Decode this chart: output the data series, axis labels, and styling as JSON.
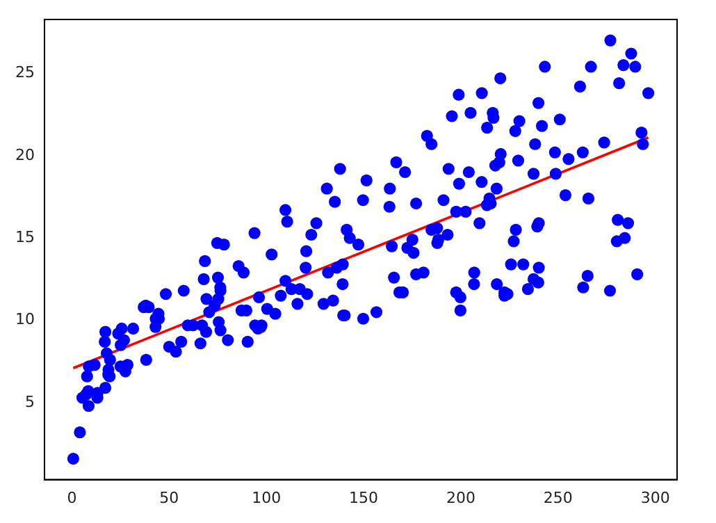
{
  "chart_data": {
    "type": "scatter",
    "marker": "circle",
    "legend": false,
    "grid": false,
    "xlim": [
      -14.1,
      311.2
    ],
    "ylim": [
      0.33,
      28.27
    ],
    "xticks": [
      0,
      50,
      100,
      150,
      200,
      250,
      300
    ],
    "yticks": [
      5,
      10,
      15,
      20,
      25
    ],
    "series": [
      {
        "color": "#0000ff",
        "x": [
          230.1,
          44.5,
          17.2,
          151.5,
          180.8,
          8.7,
          57.5,
          120.2,
          8.6,
          199.8,
          66.1,
          214.7,
          23.8,
          97.5,
          204.1,
          195.4,
          67.8,
          281.4,
          69.2,
          147.3,
          218.4,
          237.4,
          13.2,
          228.3,
          62.3,
          262.9,
          142.9,
          240.1,
          248.8,
          70.6,
          292.9,
          112.9,
          97.2,
          265.6,
          95.7,
          290.7,
          266.9,
          74.7,
          43.1,
          228,
          202.5,
          177,
          293.6,
          206.9,
          25.1,
          175.1,
          89.7,
          239.9,
          227.2,
          66.9,
          199.8,
          100.4,
          216.4,
          182.6,
          262.7,
          198.9,
          7.3,
          136.2,
          210.8,
          210.7,
          53.5,
          261.3,
          239.3,
          102.7,
          131.1,
          69,
          31.5,
          139.3,
          237.4,
          216.8,
          199.1,
          109.8,
          26.8,
          129.4,
          213.4,
          16.9,
          27.5,
          120.5,
          5.4,
          116,
          76.4,
          239.8,
          75.3,
          68.4,
          213.5,
          193.2,
          76.3,
          110.7,
          88.3,
          109.8,
          134.3,
          28.6,
          217.7,
          250.9,
          107.4,
          163.3,
          197.6,
          184.9,
          289.7,
          135.2,
          222.4,
          296.4,
          280.2,
          187.9,
          238.2,
          137.9,
          25,
          90.4,
          13.1,
          255.4,
          225.8,
          241.7,
          175.7,
          209.6,
          78.2,
          75.1,
          139.2,
          76.4,
          125.7,
          19.4,
          141.3,
          18.8,
          224,
          123.1,
          229.5,
          87.2,
          7.8,
          80.2,
          220.3,
          59.6,
          0.7,
          265.2,
          8.4,
          219.8,
          36.9,
          48.3,
          25.6,
          273.7,
          43,
          184.9,
          73.4,
          193.7,
          220.5,
          104.6,
          96.2,
          140.3,
          240.1,
          243.2,
          38,
          44.7,
          280.7,
          121,
          197.6,
          171.3,
          187.8,
          4.1,
          93.9,
          149.8,
          11.7,
          131.7,
          172.5,
          85.7,
          188.4,
          163.5,
          117.2,
          234.5,
          17.9,
          206.8,
          215.4,
          284.3,
          50,
          164.5,
          19.6,
          168.4,
          222.4,
          276.9,
          248.4,
          170.2,
          276.7,
          165.6,
          156.6,
          218.5,
          56.2,
          287.6,
          253.8,
          205,
          139.5,
          191.1,
          286,
          18.7,
          39.5,
          75.5,
          17.2,
          166.8,
          149.7,
          38.2,
          94.2,
          177,
          283.6,
          232.1
        ],
        "values": [
          22.1,
          10.4,
          9.3,
          18.5,
          12.9,
          7.2,
          11.8,
          13.2,
          4.8,
          10.6,
          8.6,
          17.4,
          9.2,
          9.7,
          19,
          22.4,
          12.5,
          24.4,
          11.3,
          14.6,
          18,
          12.5,
          5.6,
          15.5,
          9.7,
          12,
          15,
          15.9,
          18.9,
          10.5,
          21.4,
          11.9,
          9.6,
          17.4,
          9.5,
          12.8,
          25.4,
          14.7,
          10.1,
          21.5,
          16.6,
          17.1,
          20.7,
          12.9,
          8.5,
          14.9,
          10.6,
          23.2,
          14.8,
          9.7,
          11.4,
          10.7,
          22.6,
          21.2,
          20.2,
          23.7,
          5.5,
          13.2,
          23.8,
          18.4,
          8.1,
          24.2,
          15.7,
          14,
          18,
          9.3,
          9.5,
          13.4,
          18.9,
          22.3,
          18.3,
          12.4,
          8.8,
          11,
          17,
          8.7,
          6.9,
          14.2,
          5.3,
          11,
          11.8,
          12.3,
          11.3,
          13.6,
          21.7,
          15.2,
          12,
          16,
          12.9,
          16.7,
          11.2,
          7.3,
          19.4,
          22.2,
          11.5,
          16.9,
          11.7,
          15.5,
          25.4,
          17.2,
          11.7,
          23.8,
          14.8,
          14.7,
          20.7,
          19.2,
          7.2,
          8.7,
          5.3,
          19.8,
          13.4,
          21.8,
          14.1,
          15.9,
          14.6,
          12.6,
          12.2,
          9.4,
          15.9,
          6.6,
          15.5,
          7,
          11.6,
          15.2,
          19.7,
          10.6,
          6.6,
          8.8,
          24.7,
          9.7,
          1.6,
          12.7,
          5.7,
          19.6,
          10.8,
          11.6,
          9.5,
          20.8,
          9.6,
          20.7,
          10.9,
          19.2,
          20.1,
          10.4,
          11.4,
          10.3,
          13.2,
          25.4,
          10.9,
          10.1,
          16.1,
          11.6,
          16.6,
          19,
          15.6,
          3.2,
          15.3,
          10.1,
          7.3,
          12.9,
          14.4,
          13.3,
          14.9,
          18,
          11.9,
          11.9,
          8,
          12.2,
          17.1,
          15,
          8.4,
          14.5,
          7.6,
          11.7,
          11.5,
          27,
          20.2,
          11.7,
          11.8,
          12.6,
          10.5,
          12.2,
          8.7,
          26.2,
          17.6,
          22.6,
          10.3,
          17.3,
          15.9,
          6.7,
          10.8,
          9.9,
          5.9,
          19.6,
          17.3,
          7.6,
          9.7,
          12.8,
          25.5,
          13.4
        ]
      },
      {
        "type": "line",
        "color": "#ff0000",
        "marker": "none",
        "line_style": "solid",
        "x": [
          0.7,
          296.4
        ],
        "values": [
          7.1,
          21.1
        ]
      }
    ]
  }
}
